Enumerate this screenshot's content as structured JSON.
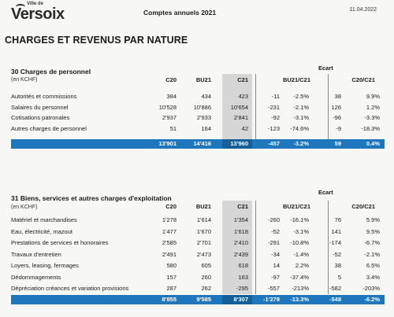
{
  "header": {
    "logo_small": "Ville de",
    "logo_big": "Versoix",
    "doc_title": "Comptes annuels 2021",
    "date": "11.04.2022"
  },
  "main_heading": "CHARGES ET REVENUS PAR NATURE",
  "sections": [
    {
      "title": "30 Charges de personnel",
      "unit": "(en KCHF)",
      "ecart_label": "Ecart",
      "columns": [
        "C20",
        "BU21",
        "C21",
        "BU21/C21",
        "C20/C21"
      ],
      "rows": [
        {
          "label": "Autorités et commissions",
          "c20": "384",
          "bu21": "434",
          "c21": "423",
          "d1": "-11",
          "p1": "-2.5%",
          "d2": "38",
          "p2": "9.9%"
        },
        {
          "label": "Salaires du personnel",
          "c20": "10'528",
          "bu21": "10'886",
          "c21": "10'654",
          "d1": "-231",
          "p1": "-2.1%",
          "d2": "126",
          "p2": "1.2%"
        },
        {
          "label": "Cotisations patronales",
          "c20": "2'937",
          "bu21": "2'933",
          "c21": "2'841",
          "d1": "-92",
          "p1": "-3.1%",
          "d2": "-96",
          "p2": "-3.3%"
        },
        {
          "label": "Autres charges de personnel",
          "c20": "51",
          "bu21": "164",
          "c21": "42",
          "d1": "-123",
          "p1": "-74.6%",
          "d2": "-9",
          "p2": "-18.3%"
        }
      ],
      "total": {
        "c20": "13'901",
        "bu21": "14'416",
        "c21": "13'960",
        "d1": "-457",
        "p1": "-3.2%",
        "d2": "59",
        "p2": "0.4%"
      }
    },
    {
      "title": "31 Biens, services et autres charges d'exploitation",
      "unit": "(en KCHF)",
      "ecart_label": "Ecart",
      "columns": [
        "C20",
        "BU21",
        "C21",
        "BU21/C21",
        "C20/C21"
      ],
      "rows": [
        {
          "label": "Matériel et marchandises",
          "c20": "1'278",
          "bu21": "1'614",
          "c21": "1'354",
          "d1": "-260",
          "p1": "-16.1%",
          "d2": "76",
          "p2": "5.9%"
        },
        {
          "label": "Eau, électricité, mazout",
          "c20": "1'477",
          "bu21": "1'670",
          "c21": "1'618",
          "d1": "-52",
          "p1": "-3.1%",
          "d2": "141",
          "p2": "9.5%"
        },
        {
          "label": "Prestations de services et honoraires",
          "c20": "2'585",
          "bu21": "2'701",
          "c21": "2'410",
          "d1": "-291",
          "p1": "-10.8%",
          "d2": "-174",
          "p2": "-6.7%"
        },
        {
          "label": "Travaux d'entretien",
          "c20": "2'491",
          "bu21": "2'473",
          "c21": "2'439",
          "d1": "-34",
          "p1": "-1.4%",
          "d2": "-52",
          "p2": "-2.1%"
        },
        {
          "label": "Loyers, leasing, fermages",
          "c20": "580",
          "bu21": "605",
          "c21": "618",
          "d1": "14",
          "p1": "2.2%",
          "d2": "38",
          "p2": "6.5%"
        },
        {
          "label": "Dédommagements",
          "c20": "157",
          "bu21": "260",
          "c21": "163",
          "d1": "-97",
          "p1": "-37.4%",
          "d2": "5",
          "p2": "3.4%"
        },
        {
          "label": "Dépréciation créances et variation provisions",
          "c20": "287",
          "bu21": "262",
          "c21": "-295",
          "d1": "-557",
          "p1": "-213%",
          "d2": "-582",
          "p2": "-203%"
        }
      ],
      "total": {
        "c20": "8'855",
        "bu21": "9'585",
        "c21": "8'307",
        "d1": "-1'278",
        "p1": "-13.3%",
        "d2": "-548",
        "p2": "-6.2%"
      }
    }
  ]
}
